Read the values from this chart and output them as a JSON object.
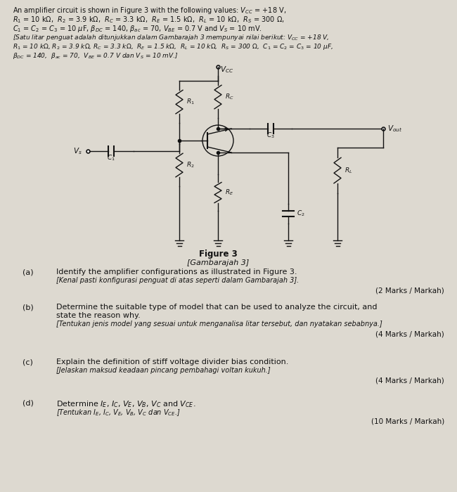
{
  "background_color": "#ddd9d0",
  "text_color": "#111111",
  "figure_caption": "Figure 3",
  "figure_caption2": "[Gambarajah 3]",
  "questions": [
    {
      "letter": "(a)",
      "main": "Identify the amplifier configurations as illustrated in Figure 3.",
      "main2": "",
      "italic": "[Kenal pasti konfigurasi penguat di atas seperti dalam Gambarajah 3].",
      "marks": "(2 Marks / Markah)"
    },
    {
      "letter": "(b)",
      "main": "Determine the suitable type of model that can be used to analyze the circuit, and",
      "main2": "state the reason why.",
      "italic": "[Tentukan jenis model yang sesuai untuk menganalisa litar tersebut, dan nyatakan sebabnya.]",
      "marks": "(4 Marks / Markah)"
    },
    {
      "letter": "(c)",
      "main": "Explain the definition of stiff voltage divider bias condition.",
      "main2": "",
      "italic": "[Jelaskan maksud keadaan pincang pembahagi voltan kukuh.]",
      "marks": "(4 Marks / Markah)"
    },
    {
      "letter": "(d)",
      "main": "Determine $I_E$, $I_C$, $V_E$, $V_B$, $V_C$ and $V_{CE}$.",
      "main2": "",
      "italic": "[Tentukan $I_E$, $I_C$, $V_E$, $V_B$, $V_C$ dan $V_{CE}$.]",
      "marks": "(10 Marks / Markah)"
    }
  ]
}
